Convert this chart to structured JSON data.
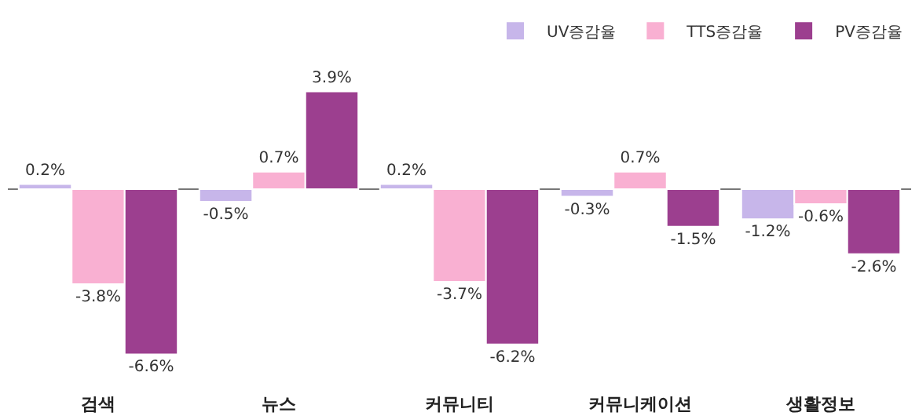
{
  "chart_data": {
    "type": "bar",
    "categories": [
      "검색",
      "뉴스",
      "커뮤니티",
      "커뮤니케이션",
      "생활정보"
    ],
    "series": [
      {
        "name": "UV증감율",
        "color": "#c7b6ea",
        "values": [
          0.2,
          -0.5,
          0.2,
          -0.3,
          -1.2
        ],
        "value_labels": [
          "0.2%",
          "-0.5%",
          "0.2%",
          "-0.3%",
          "-1.2%"
        ]
      },
      {
        "name": "TTS증감율",
        "color": "#f9b0d2",
        "values": [
          -3.8,
          0.7,
          -3.7,
          0.7,
          -0.6
        ],
        "value_labels": [
          "-3.8%",
          "0.7%",
          "-3.7%",
          "0.7%",
          "-0.6%"
        ]
      },
      {
        "name": "PV증감율",
        "color": "#9c3f8f",
        "values": [
          -6.6,
          3.9,
          -6.2,
          -1.5,
          -2.6
        ],
        "value_labels": [
          "-6.6%",
          "3.9%",
          "-6.2%",
          "-1.5%",
          "-2.6%"
        ]
      }
    ],
    "grid": false,
    "legend": "top right"
  }
}
